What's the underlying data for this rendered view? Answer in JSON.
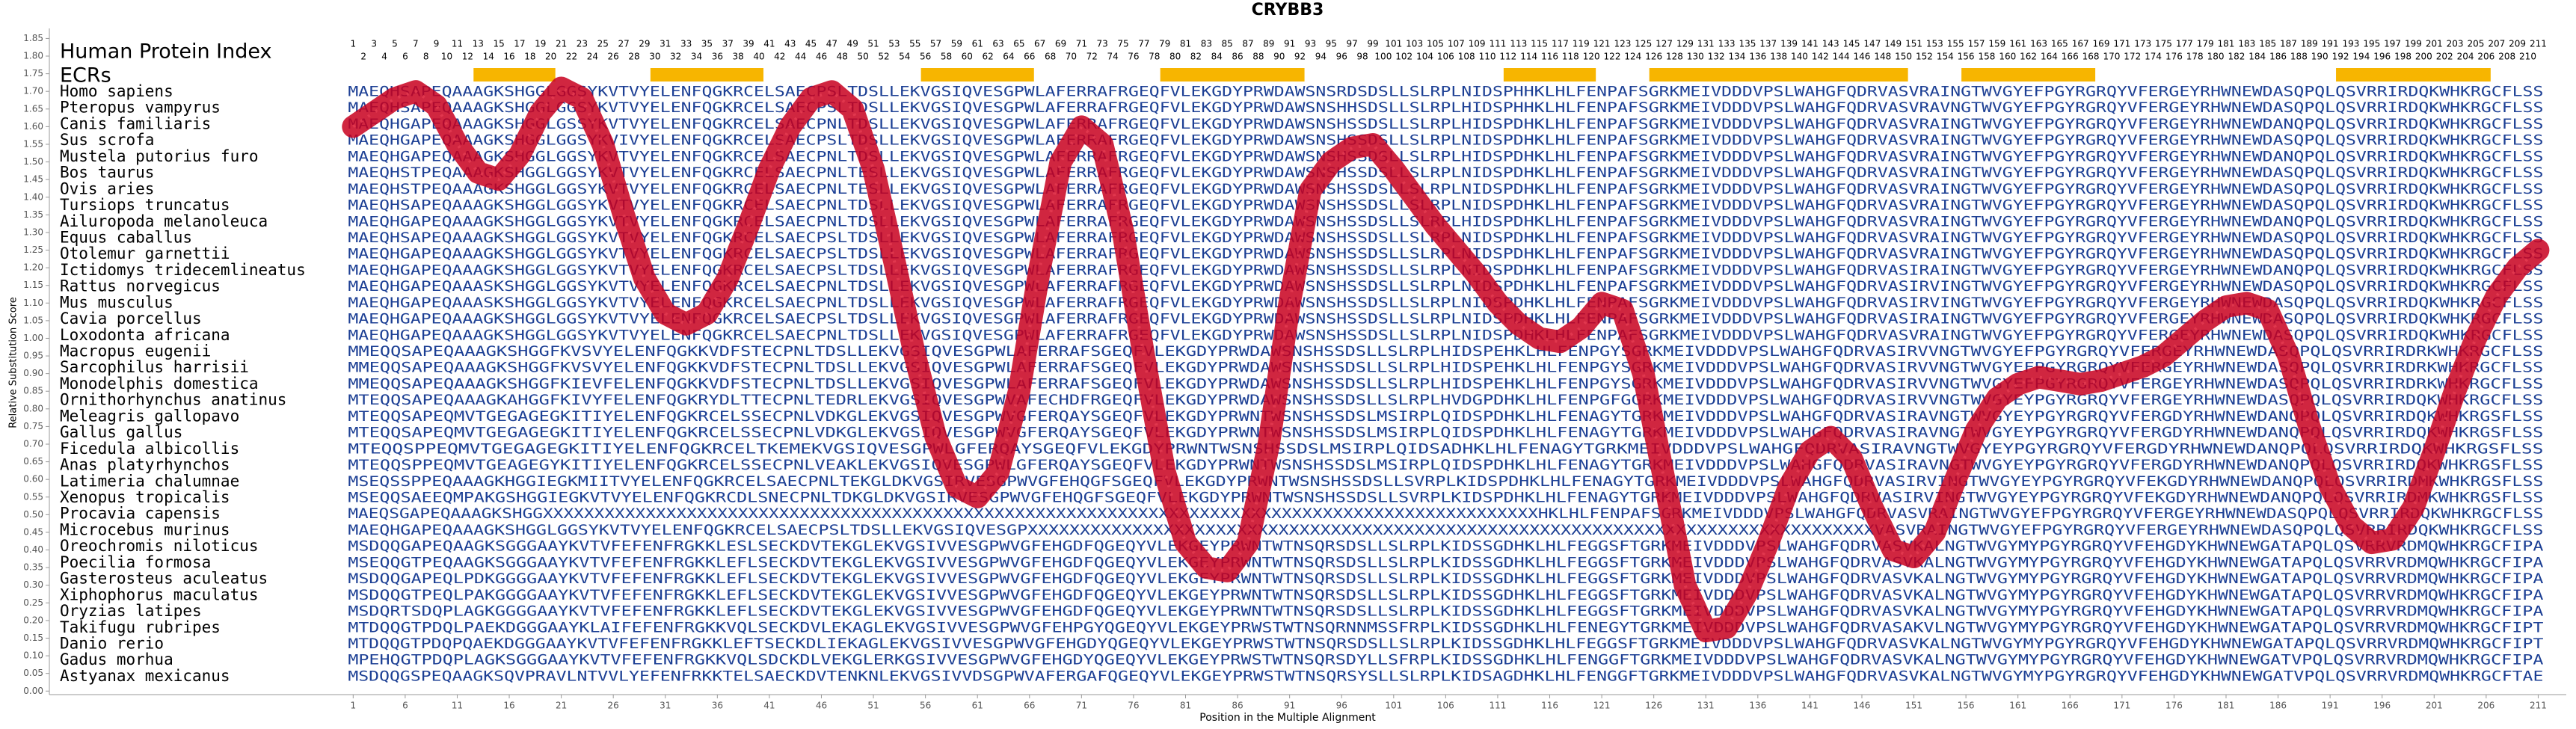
{
  "chart_data": {
    "type": "alignment",
    "title": "CRYBB3",
    "xlabel": "Position in the Multiple Alignment",
    "ylabel": "Relative Substitution Score",
    "index_label": "Human Protein Index",
    "ecr_label": "ECRs",
    "xlim": [
      -28.2,
      213.7
    ],
    "ylim": [
      -0.01,
      1.87
    ],
    "xticks": [
      1,
      6,
      11,
      16,
      21,
      26,
      31,
      36,
      41,
      46,
      51,
      56,
      61,
      66,
      71,
      76,
      81,
      86,
      91,
      96,
      101,
      106,
      111,
      116,
      121,
      126,
      131,
      136,
      141,
      146,
      151,
      156,
      161,
      166,
      171,
      176,
      181,
      186,
      191,
      196,
      201,
      206,
      211
    ],
    "yticks": [
      {
        "value": 0,
        "label": "0.00"
      },
      {
        "value": 0.05,
        "label": "0.05"
      },
      {
        "value": 0.1,
        "label": "0.10"
      },
      {
        "value": 0.15,
        "label": "0.15"
      },
      {
        "value": 0.2,
        "label": "0.20"
      },
      {
        "value": 0.25,
        "label": "0.25"
      },
      {
        "value": 0.3,
        "label": "0.30"
      },
      {
        "value": 0.35,
        "label": "0.35"
      },
      {
        "value": 0.4,
        "label": "0.40"
      },
      {
        "value": 0.45,
        "label": "0.45"
      },
      {
        "value": 0.5,
        "label": "0.50"
      },
      {
        "value": 0.55,
        "label": "0.55"
      },
      {
        "value": 0.6,
        "label": "0.60"
      },
      {
        "value": 0.65,
        "label": "0.65"
      },
      {
        "value": 0.7,
        "label": "0.70"
      },
      {
        "value": 0.75,
        "label": "0.75"
      },
      {
        "value": 0.8,
        "label": "0.80"
      },
      {
        "value": 0.85,
        "label": "0.85"
      },
      {
        "value": 0.9,
        "label": "0.90"
      },
      {
        "value": 0.95,
        "label": "0.95"
      },
      {
        "value": 1,
        "label": "1.00"
      },
      {
        "value": 1.05,
        "label": "1.05"
      },
      {
        "value": 1.1,
        "label": "1.10"
      },
      {
        "value": 1.15,
        "label": "1.15"
      },
      {
        "value": 1.2,
        "label": "1.20"
      },
      {
        "value": 1.25,
        "label": "1.25"
      },
      {
        "value": 1.3,
        "label": "1.30"
      },
      {
        "value": 1.35,
        "label": "1.35"
      },
      {
        "value": 1.4,
        "label": "1.40"
      },
      {
        "value": 1.45,
        "label": "1.45"
      },
      {
        "value": 1.5,
        "label": "1.50"
      },
      {
        "value": 1.55,
        "label": "1.55"
      },
      {
        "value": 1.6,
        "label": "1.60"
      },
      {
        "value": 1.65,
        "label": "1.65"
      },
      {
        "value": 1.7,
        "label": "1.70"
      },
      {
        "value": 1.75,
        "label": "1.75"
      },
      {
        "value": 1.8,
        "label": "1.80"
      },
      {
        "value": 1.85,
        "label": "1.85"
      }
    ],
    "protein_index": [
      1,
      2,
      3,
      4,
      5,
      6,
      7,
      8,
      9,
      10,
      11,
      12,
      13,
      14,
      15,
      16,
      17,
      18,
      19,
      20,
      21,
      22,
      23,
      24,
      25,
      26,
      27,
      28,
      29,
      30,
      31,
      32,
      33,
      34,
      35,
      36,
      37,
      38,
      39,
      40,
      41,
      42,
      43,
      44,
      45,
      46,
      47,
      48,
      49,
      50,
      51,
      52,
      53,
      54,
      55,
      56,
      57,
      58,
      59,
      60,
      61,
      62,
      63,
      64,
      65,
      66,
      67,
      68,
      69,
      70,
      71,
      72,
      73,
      74,
      75,
      76,
      77,
      78,
      79,
      80,
      81,
      82,
      83,
      84,
      85,
      86,
      87,
      88,
      89,
      90,
      91,
      92,
      93,
      94,
      95,
      96,
      97,
      98,
      99,
      100,
      101,
      102,
      103,
      104,
      105,
      106,
      107,
      108,
      109,
      110,
      111,
      112,
      113,
      114,
      115,
      116,
      117,
      118,
      119,
      120,
      121,
      122,
      123,
      124,
      125,
      126,
      127,
      128,
      129,
      130,
      131,
      132,
      133,
      134,
      135,
      136,
      137,
      138,
      139,
      140,
      141,
      142,
      143,
      144,
      145,
      146,
      147,
      148,
      149,
      150,
      151,
      152,
      153,
      154,
      155,
      156,
      157,
      158,
      159,
      160,
      161,
      162,
      163,
      164,
      165,
      166,
      167,
      168,
      169,
      170,
      171,
      172,
      173,
      174,
      175,
      176,
      177,
      178,
      179,
      180,
      181,
      182,
      183,
      184,
      185,
      186,
      187,
      188,
      189,
      190,
      191,
      192,
      193,
      194,
      195,
      196,
      197,
      198,
      199,
      200,
      201,
      202,
      203,
      204,
      205,
      206,
      207,
      208,
      209,
      210,
      211
    ],
    "ecr_color": "#f7b500",
    "ecrs": [
      [
        13,
        20
      ],
      [
        30,
        40
      ],
      [
        56,
        66
      ],
      [
        79,
        92
      ],
      [
        112,
        120
      ],
      [
        126,
        150
      ],
      [
        156,
        168
      ],
      [
        192,
        206
      ]
    ],
    "curve_color": "#c8001e",
    "curve": {
      "x": [
        1,
        3,
        5,
        7,
        9,
        11,
        13,
        15,
        17,
        19,
        21,
        23,
        25,
        27,
        29,
        31,
        33,
        35,
        37,
        39,
        41,
        43,
        45,
        47,
        49,
        51,
        53,
        55,
        57,
        59,
        61,
        63,
        65,
        67,
        69,
        71,
        73,
        75,
        77,
        79,
        81,
        83,
        85,
        87,
        89,
        91,
        93,
        95,
        97,
        99,
        101,
        103,
        105,
        107,
        109,
        111,
        113,
        115,
        117,
        119,
        121,
        123,
        125,
        127,
        129,
        131,
        133,
        135,
        137,
        139,
        141,
        143,
        145,
        147,
        149,
        151,
        153,
        155,
        157,
        159,
        161,
        163,
        165,
        167,
        169,
        171,
        173,
        175,
        177,
        179,
        181,
        183,
        185,
        187,
        189,
        191,
        193,
        195,
        197,
        199,
        201,
        203,
        205,
        207,
        209,
        211
      ],
      "y": [
        1.6,
        1.64,
        1.68,
        1.7,
        1.66,
        1.55,
        1.47,
        1.45,
        1.52,
        1.64,
        1.71,
        1.68,
        1.55,
        1.35,
        1.17,
        1.07,
        1.04,
        1.07,
        1.17,
        1.32,
        1.48,
        1.6,
        1.68,
        1.7,
        1.65,
        1.48,
        1.22,
        0.95,
        0.72,
        0.58,
        0.55,
        0.62,
        0.85,
        1.2,
        1.5,
        1.6,
        1.55,
        1.3,
        0.95,
        0.62,
        0.42,
        0.35,
        0.34,
        0.42,
        0.7,
        1.1,
        1.42,
        1.5,
        1.54,
        1.55,
        1.48,
        1.4,
        1.32,
        1.25,
        1.18,
        1.1,
        1.04,
        1.0,
        0.99,
        1.03,
        1.1,
        1.08,
        0.9,
        0.6,
        0.3,
        0.17,
        0.18,
        0.28,
        0.42,
        0.58,
        0.68,
        0.72,
        0.66,
        0.52,
        0.4,
        0.38,
        0.45,
        0.6,
        0.74,
        0.83,
        0.87,
        0.89,
        0.88,
        0.87,
        0.88,
        0.9,
        0.92,
        0.95,
        1.0,
        1.05,
        1.09,
        1.1,
        1.08,
        0.95,
        0.75,
        0.58,
        0.47,
        0.42,
        0.43,
        0.52,
        0.68,
        0.85,
        1.0,
        1.12,
        1.2,
        1.25
      ]
    },
    "species": [
      "Homo sapiens",
      "Pteropus vampyrus",
      "Canis familiaris",
      "Sus scrofa",
      "Mustela putorius furo",
      "Bos taurus",
      "Ovis aries",
      "Tursiops truncatus",
      "Ailuropoda melanoleuca",
      "Equus caballus",
      "Otolemur garnettii",
      "Ictidomys tridecemlineatus",
      "Rattus norvegicus",
      "Mus musculus",
      "Cavia porcellus",
      "Loxodonta africana",
      "Macropus eugenii",
      "Sarcophilus harrisii",
      "Monodelphis domestica",
      "Ornithorhynchus anatinus",
      "Meleagris gallopavo",
      "Gallus gallus",
      "Ficedula albicollis",
      "Anas platyrhynchos",
      "Latimeria chalumnae",
      "Xenopus tropicalis",
      "Procavia capensis",
      "Microcebus murinus",
      "Oreochromis niloticus",
      "Poecilia formosa",
      "Gasterosteus aculeatus",
      "Xiphophorus maculatus",
      "Oryzias latipes",
      "Takifugu rubripes",
      "Danio rerio",
      "Gadus morhua",
      "Astyanax mexicanus"
    ],
    "sequences": [
      "MAEQHSAPEQAAAGKSHGGLGGSYKVTVYELENFQGKRCELSAECPSLTDSLLEKVGSIQVESGPWLAFERRAFRGEQFVLEKGDYPRWDAWSNSRDSDSLLSLRPLNIDSPHHKLHLFENPAFSGRKMEIVDDDVPSLWAHGFQDRVASVRAINGTWVGYEFPGYRGRQYVFERGEYRHWNEWDASQPQLQSVRRIRDQKWHKRGCFLSS",
      "MAEQHSAPEQAAAGKSHGGLGGSYKVTVYELENFQGKRCELSAECPSLTDSLLEKVGSIQVESGPWLAFERRAFRGEQFVLEKGDYPRWDAWSNSHHSDSLLSLRPLHIDSPHHKLHLFENPAFSGRKMEIVDDDVPSLWAHGFQDRVASVRAVNGTWVGYEFPGYRGRQYVFERGEYRHWNEWDASQPQLQSVRRIRDQKWHKRGCFLSS",
      "MAEQHGAPEQAAAGKSHGGLGSSYKVTVYELENFQGKRCELSAECPNLTDSLLEKVGSIQVESGPWLAFERRAFRGEQFVLEKGDYPRWDAWSNSHSSDSLLSLRPLHIDSPDHKLHLFENPAFSGRKMEIVDDDVPSLWAHGFQDRVASVRAINGTWVGYEFPGYRGRQYVFERGEYRHWNEWDANQPQLQSVRRIRDQKWHKRGCFLSS",
      "MAEQHGAPEQAAAGKSHGGLGGSYKVIVYELENFQGKRCELSAECPSLTDSLLEKVGSIQVESGPWLAFERRAFRGEQFVLEKGDYPRWDAWSNSHSSDSLLSLRPLNIDSPDHKLHLFENPAFSGRKMEIVDDDVPSLWAHGFQDRVASVRAINGTWVGYEFPGYRGRQYVFERGEYRHWNEWDASQPQLQSVRRIRDQKWHKRGCFLSS",
      "MAEQHGAPEQAAAGKSHGGLGGSYKVTVYELENFQGKRCELSAECPNLTDSLLEKVGSIQVESGPWLAFERRAFRGEQFVLEKGDYPRWDAWSNSHSSDSLLSLRPLHIDSPDHKLHLFENPAFSGRKMEIVDDDVPSLWAHGFQDRVASVRAINGTWVGYEFPGYRGRQYVFERGEYRHWNEWDANQPQLQSVRRIRDQKWHKRGCFLSS",
      "MAEQHSTPEQAAAGKSHGGLGGSYKVTVYELENFQGKRCELSAECPNLTESLLEKVGSIQVESGPWLAFERRAFRGEQFVLEKGDYPRWDAWSNSHSSDSLLSLRPLNIDSPDHKLHLFENPAFSGRKMEIVDDDVPSLWAHGFQDRVASVRAINGTWVGYEFPGYRGRQYVFERGEYRHWNEWDASQPQLQSVRRIRDQKWHKRGCFLSS",
      "MAEQHSTPEQAAAGKSHGGLGGSYKVTVYELENFQGKRCELSAECPNLTESLLEKVGSIQVESGPWLAFERRAFRGEQFVLEKGDYPRWDAWSNSHSSDSLLSLRPLNIDSPDHKLHLFENPAFSGRKMEIVDDDVPSLWAHGFQDRVASVRAINGTWVGYEFPGYRGRQYVFERGEYRHWNEWDASQPQLQSVRRIRDQKWHKRGCFLSS",
      "MAEQHSAPEQAAAGKSHGGLGGSYKVTVYELENFQGKRCELSAECPNLTDSLLEKVGSIQVESGPWLAFERRAFRGEQFVLEKGDYPRWDAWSNSHSSDSLLSLRPLNIDSPDHKLHLFENPAFSGRKMEIVDDDVPSLWAHGFQDRVASVRAINGTWVGYEFPGYRGRQYVFERGEYRHWNEWDASQPQLQSVRRIRDQKWHKRGCFLSS",
      "MAEQHGAPEQAAAGKSHGGLGGSYKVTVYELENFQGKRCELSAECPNLTDSLLEKVGSIQVESGPWLAFERRAFRGEQFVLEKGDYPRWDAWSNSHSSDSLLSLRPLHIDSPDHKLHLFENPAFSGRKMEIVDDDVPSLWAHGFQDRVASVRAINGTWVGYEFPGYRGRQYVFERGEYRHWNEWDANQPQLQSVRRIRDQKWHKRGCFLSS",
      "MAEQHSAPEQAAAGKSHGGLGGSYKVTVYELENFQGKRCELSAECPSLTDSLLEKVGSIQVESGPWLAFERRAFRGEQFVLEKGDYPRWDAWSNSHSSDSLLSLRPLNIDSPDHKLHLFENPAFSGRKMEIVDDDVPSLWAHGFQDRVASVRAINGTWVGYEFPGYRGRQYVFERGEYRHWNEWDASQPQLQSVRRIRDQKWHKRGCFLSS",
      "MAEQHGAPEQAAAGKSHGGLGGSYKVTVYELENFQGKRCELSAECPSLTDSLLEKVGSIQVESGPWLAFERRAFRGEQFVLEKGDYPRWDAWSNSHSSDSLLSLRPLNIDSPDHKLHLFENPAFSGRKMEIVDDDVPSLWAHGFQDRVASVRAINGTWVGYEFPGYRGRQYVFERGEYRHWNEWDASQPQLQSVRRIRDQKWHKRGCFLSS",
      "MAEQHGAPEQAAAGKSHGGLGGSYKVTVYELENFQGKRCELSAECPSLTDSLLEKVGSIQVESGPWLAFERRAFRGEQFVLEKGDYPRWDAWSNSHSSDSLLSLRPLNIDSPDHKLHLFENPAFSGRKMEIVDDDVPSLWAHGFQDRVASIRAINGTWVGYEFPGYRGRQYVFERGEYRHWNEWDANQPQLQSVRRIRDQKWHKRGCFLSS",
      "MAEQHGAPEQAAASKSHGGLGGSYKVTVYELENFQGKRCELSAECPNLTDSLLEKVGSIQVESGPWLAFERRAFRGEQFVLEKGDYPRWDAWSNSHSSDSLLSLRPLNIDSPDHKLHLFENPAFSGRKMEIVDDDVPSLWAHGFQDRVASIRVINGTWVGYEFPGYRGRQYVFERGEYRHWNEWDASQPQLQSVRRIRDQKWHKRGCFLSS",
      "MAEQHGAPEQAAASKSHGGLGGSYKVTVYELENFQGKRCELSAECPNLTDSLLEKVGSIQVESGPWLAFERRAFRGEQFVLEKGDYPRWDAWSNSHSSDSLLSLRPLNIDSPDHKLHLFENPAFSGRKMEIVDDDVPSLWAHGFQDRVASIRVINGTWVGYEFPGYRGRQYVFERGEYRHWNEWDASQPQLQSVRRIRDQKWHKRGCFLSS",
      "MAEQHGAPEQAAAGKSHGGLGGSYKVTVYELENFQGKRCELSAECPSLTDSLLEKVGSIQVESGPWLAFERRAFRGEQFVLEKGDYPRWDAWSNSHSSDSLLSLRPLNIDSPDHKLHLFENPAFSGRKMEIVDDDVPSLWAHGFQDRVASIRAINGTWVGYEFPGYRGRQYVFERGEYRHWNEWDASQPQLQSVRRIRDQKWHKRGCFLSS",
      "MAEQHGAPEQAAAGKSHGGLGGSYKVTVYELENFQGKRCELSAECPNLTDSLLEKVGSIQVESGPWLAFERRAFRGEQFVLEKGDYPRWDAWSNSHSSDSLLSLRPLNIDSPDHKLHLFENPAFSGRKMEIVDDDVPSLWAHGFQDRVASVRAINGTWVGYEFPGYRGRQYVFERGEYRHWNEWDASQPQLQSVRRIRDQKWHKRGCFLSS",
      "MMEQQSAPEQAAAGKSHGGFKVSVYELENFQGKKVDFSTECPNLTDSLLEKVGSIQVESGPWLAFERRAFSGEQFVLEKGDYPRWDAWSNSHSSDSLLSLRPLHIDSPEHKLHLFENPGYSGRKMEIVDDDVPSLWAHGFQDRVASIRVVNGTWVGYEFPGYRGRQYVFERGEYRHWNEWDASQPQLQSVRRIRDRKWHKRGCFLSS",
      "MMEQQSAPEQAAAGKSHGGFKVSVYELENFQGKKVDFSTECPNLTDSLLEKVGSIQVESGPWLAFERRAFSGEQFVLEKGDYPRWDAWSNSHSSDSLLSLRPLHIDSPEHKLHLFENPGYSGRKMEIVDDDVPSLWAHGFQDRVASIRVVNGTWVGYEFPGYRGRQYVFERGEYRHWNEWDASQPQLQSVRRIRDRKWHKRGCFLSS",
      "MMEQQSAPEQAAAGKSHGGFKIEVFELENFQGKKVDFSTECPNLTDSLLEKVGSIQVESGPWLAFERRAFSGEQFVLEKGDYPRWDAWSNSHSSDSLLSLRPLHIDSPEHKLHLFENPGYSGRKMEIVDDDVPSLWAHGFQDRVASIRVVNGTWVGYEFPGYRGRQYVFERGEYRHWNEWDASQPQLQSVRRIRDRKWHKRGCFLSS",
      "MTEQQSAPEQAAAGKAHGGFKIVYFELENFQGKRYDLTTECPNLTEDRLEKVGSIQVESGPWVAFECHDFRGEQFVLEKGDYPRWDAWSNSHSSDSLLSLRPLHVDGPDHKLHLFENPGFGGRKMEIVDDDVPSLWAHGFQDRVASIRVVNGTWVGYEYPGYRGRQYVFERGEYRHWNEWDASQPQLQSVRRIRDQKWHKRGCFLSS",
      "MTEQQSAPEQMVTGEGAGEGKITIYELENFQGKRCELSSECPNLVDKGLEKVGSIQVESGPWVGFERQAYSGEQFVLEKGDYPRWNTWSNSHSSDSLMSIRPLQIDSPDHKLHLFENAGYTGRKMEIVDDDVPSLWAHGFQDRVASIRAVNGTWVGYEYPGYRGRQYVFERGDYRHWNEWDANQPQLQSVRRIRDQKWHKRGSFLSS",
      "MTEQQSAPEQMVTGEGAGEGKITIYELENFQGKRCELSSECPNLVDKGLEKVGSIQVESGPWVGFERQAYSGEQFVLEKGDYPRWNTWSNSHSSDSLMSIRPLQIDSPDHKLHLFENAGYTGRKMEIVDDDVPSLWAHGFQDRVASIRAVNGTWVGYEYPGYRGRQYVFERGDYRHWNEWDANQPQLQSVRRIRDQKWHKRGSFLSS",
      "MTEQQSPPEQMVTGEGAGEGKITIYELENFQGKRCELTKEMEKVGSIQVESGPWLGFERQAYSGEQFVLEKGDYPRWNTWSNSHSSDSLMSIRPLQIDSADHKLHLFENAGYTGRKMEIVDDDVPSLWAHGFQDRVASIRAVNGTWVGYEYPGYRGRQYVFERGDYRHWNEWDANQPQLQSVRRIRDQKWHKRGSFLSS",
      "MTEQQSPPEQMVTGEAGEGYKITIYELENFQGKRCELSSECPNLVEAKLEKVGSIQVESGPWLGFERQAYSGEQFVLEKGDYPRWNTWSNSHSSDSLMSIRPLQIDSPDHKLHLFENAGYTGRKMEIVDDDVPSLWAHGFQDRVASIRAVNGTWVGYEYPGYRGRQYVFERGDYRHWNEWDANQPQLQSVRRIRDQKWHKRGSFLSS",
      "MSEQSSPPEQAAAGKHGGIEGKMIITVYELENFQGKRCELSAECPNLTEKGLDKVGSIRVESGPWVGFEHQGFSGEQFVLEKGDYPRWNTWSNSHSSDSLLSVRPLKIDSPDHKLHLFENAGYTGRKMEIVDDDVPSLWAHGFQDRVASIRVINGTWVGYEYPGYRGRQYVFEKGDYRHWNEWDANQPQLQSVRRIRDMKWHKRGSFLSS",
      "MSEQQSAEEQMPAKGSHGGIEGKVTVYELENFQGKRCDLSNECPNLTDKGLDKVGSIRVESGPWVGFEHQGFSGEQFVLEKGDYPRWNTWSNSHSSDSLLSVRPLKIDSPDHKLHLFENAGYTGRKMEIVDDDVPSLWAHGFQDRVASIRVINGTWVGYEYPGYRGRQYVFEKGDYRHWNEWDANQPQLQSVRRIRDMKWHKRGSFLSS",
      "MAEQSGAPEQAAAGKSHGGXXXXXXXXXXXXXXXXXXXXXXXXXXXXXXXXXXXXXXXXXXXXXXXXXXXXXXXXXXXXXXXXXXXXXXXXXXXXXXXXXXXXXXXXXXXXXXXXXHKLHLFENPAFSGRKMEIVDDDVPSLWAHGFQDRVASVRAINGTWVGYEFPGYRGRQYVFERGEYRHWNEWDASQPQLQSVRRIRDQKWHKRGCFLSS",
      "MAEQHGAPEQAAAGKSHGGLGGSYKVTVYELENFQGKRCELSAECPSLTDSLLEKVGSIQVESGPXXXXXXXXXXXXXXXXXXXXXXXXXXXXXXXXXXXXXXXXXXXXXXXXXXXXXXXXXXXXXXXXXXXXXXXXXXXXXXXXXVASVRAINGTWVGYEFPGYRGRQYVFERGEYRHWNEWDASQPQLQSVRRIRDQKWHKRGCFLSS",
      "MSDQQGAPEQAAGKSGGGAAYKVTVFEFENFRGKKLESLSECKDVTEKGLEKVGSIVVESGPWVGFEHGDFQGEQYVLEKGEYPRWNTWTNSQRSDSLLSLRPLKIDSSGDHKLHLFEGGSFTGRKMEIVDDDVPSLWAHGFQDRVASVKALNGTWVGYMYPGYRGRQYVFEHGDYKHWNEWGATAPQLQSVRRVRDMQWHKRGCFIPA",
      "MSEQQGTPEQAAGKSGGGAAYKVTVFEFENFRGKKLEFLSECKDVTEKGLEKVGSIVVESGPWVGFEHGDFQGEQYVLEKGEYPRWNTWTNSQRSDSLLSLRPLKIDSSGDHKLHLFEGGSFTGRKMEIVDDDVPSLWAHGFQDRVASVKALNGTWVGYMYPGYRGRQYVFEHGDYKHWNEWGATAPQLQSVRRVRDMQWHKRGCFIPA",
      "MSDQQGAPEQLPDKGGGGAAYKVTVFEFENFRGKKLEFLSECKDVTEKGLEKVGSIVVESGPWVGFEHGDFQGEQYVLEKGEYPRWNTWTNSQRSDSLLSLRPLKIDSSGDHKLHLFEGGSFTGRKMEIVDDDVPSLWAHGFQDRVASVKALNGTWVGYMYPGYRGRQYVFEHGDYKHWNEWGATAPQLQSVRRVRDMQWHKRGCFIPA",
      "MSDQQGTPEQLPAKGGGGAAYKVTVFEFENFRGKKLEFLSECKDVTEKGLEKVGSIVVESGPWVGFEHGDFQGEQYVLEKGEYPRWNTWTNSQRSDSLLSLRPLKIDSSGDHKLHLFEGGSFTGRKMEIVDDDVPSLWAHGFQDRVASVKALNGTWVGYMYPGYRGRQYVFEHGDYKHWNEWGATAPQLQSVRRVRDMQWHKRGCFIPA",
      "MSDQRTSDQPLAGKGGGGAAYKVTVFEFENFRGKKLEFLSECKDVTEKGLEKVGSIVVESGPWVGFEHGDFQGEQYVLEKGEYPRWNTWTNSQRSDSLLSLRPLKIDSSGDHKLHLFEGGSFTGRKMEIVDDDVPSLWAHGFQDRVASVKALNGTWVGYMYPGYRGRQYVFEHGDYKHWNEWGATAPQLQSVRRVRDMQWHKRGCFIPA",
      "MTDQQGTPDQLPAEKDGGGAAYKLAIFEFENFRGKKVQLSECKDVLEKAGLEKVGSIVVESGPWVGFEHPGYQGEQYVLEKGEYPRWSTWTNSQRNNMSSFRPLKIDSSGDHKLHLFENEGYTGRKMEIVDDDVPSLWAHGFQDRVASAKVLNGTWVGYMYPGYRGRQYVFEHGDYKHWNEWGATAPQLQSVRRVRDMQWHKRGCFIPT",
      "MTDQQGTPDQPQAEKDGGGAAYKVTVFEFENFRGKKLEFTSECKDLIEKAGLEKVGSIVVESGPWVGFEHGDYQGEQYVLEKGEYPRWSTWTNSQRSDSLLSLRPLKIDSSGDHKLHLFEGGSFTGRKMEIVDDDVPSLWAHGFQDRVASVKALNGTWVGYMYPGYRGRQYVFEHGDYKHWNEWGATAPQLQSVRRVRDMQWHKRGCFIPT",
      "MPEHQGTPDQPLAGKSGGGAAYKVTVFEFENFRGKKVQLSDCKDLVEKGLERKGSIVVESGPWVGFEHGDYQGEQYVLEKGEYPRWSTWTNSQRSDYLLSFRPLKIDSSGDHKLHLFENGGFTGRKMEIVDDDVPSLWAHGFQDRVASVKALNGTWVGYMYPGYRGRQYVFEHGDYKHWNEWGATVPQLQSVRRVRDMQWHKRGCFIPA",
      "MSDQQGSPEQAAGKSQVPRAVLNTVVLYEFENFRKKTELSAECKDVTENKNLEKVGSIVVDSGPWVAFERGAFQGEQYVLEKGEYPRWSTWTNSQRSYSLLSLRPLKIDSAGDHKLHLFENGGFTGRKMEIVDDDVPSLWAHGFQDRVASVKALNGTWVGYMYPGYRGRQYVFEHGDYKHWNEWGATVPQLQSVRRVRDMQWHKRGCFTAE"
    ]
  }
}
